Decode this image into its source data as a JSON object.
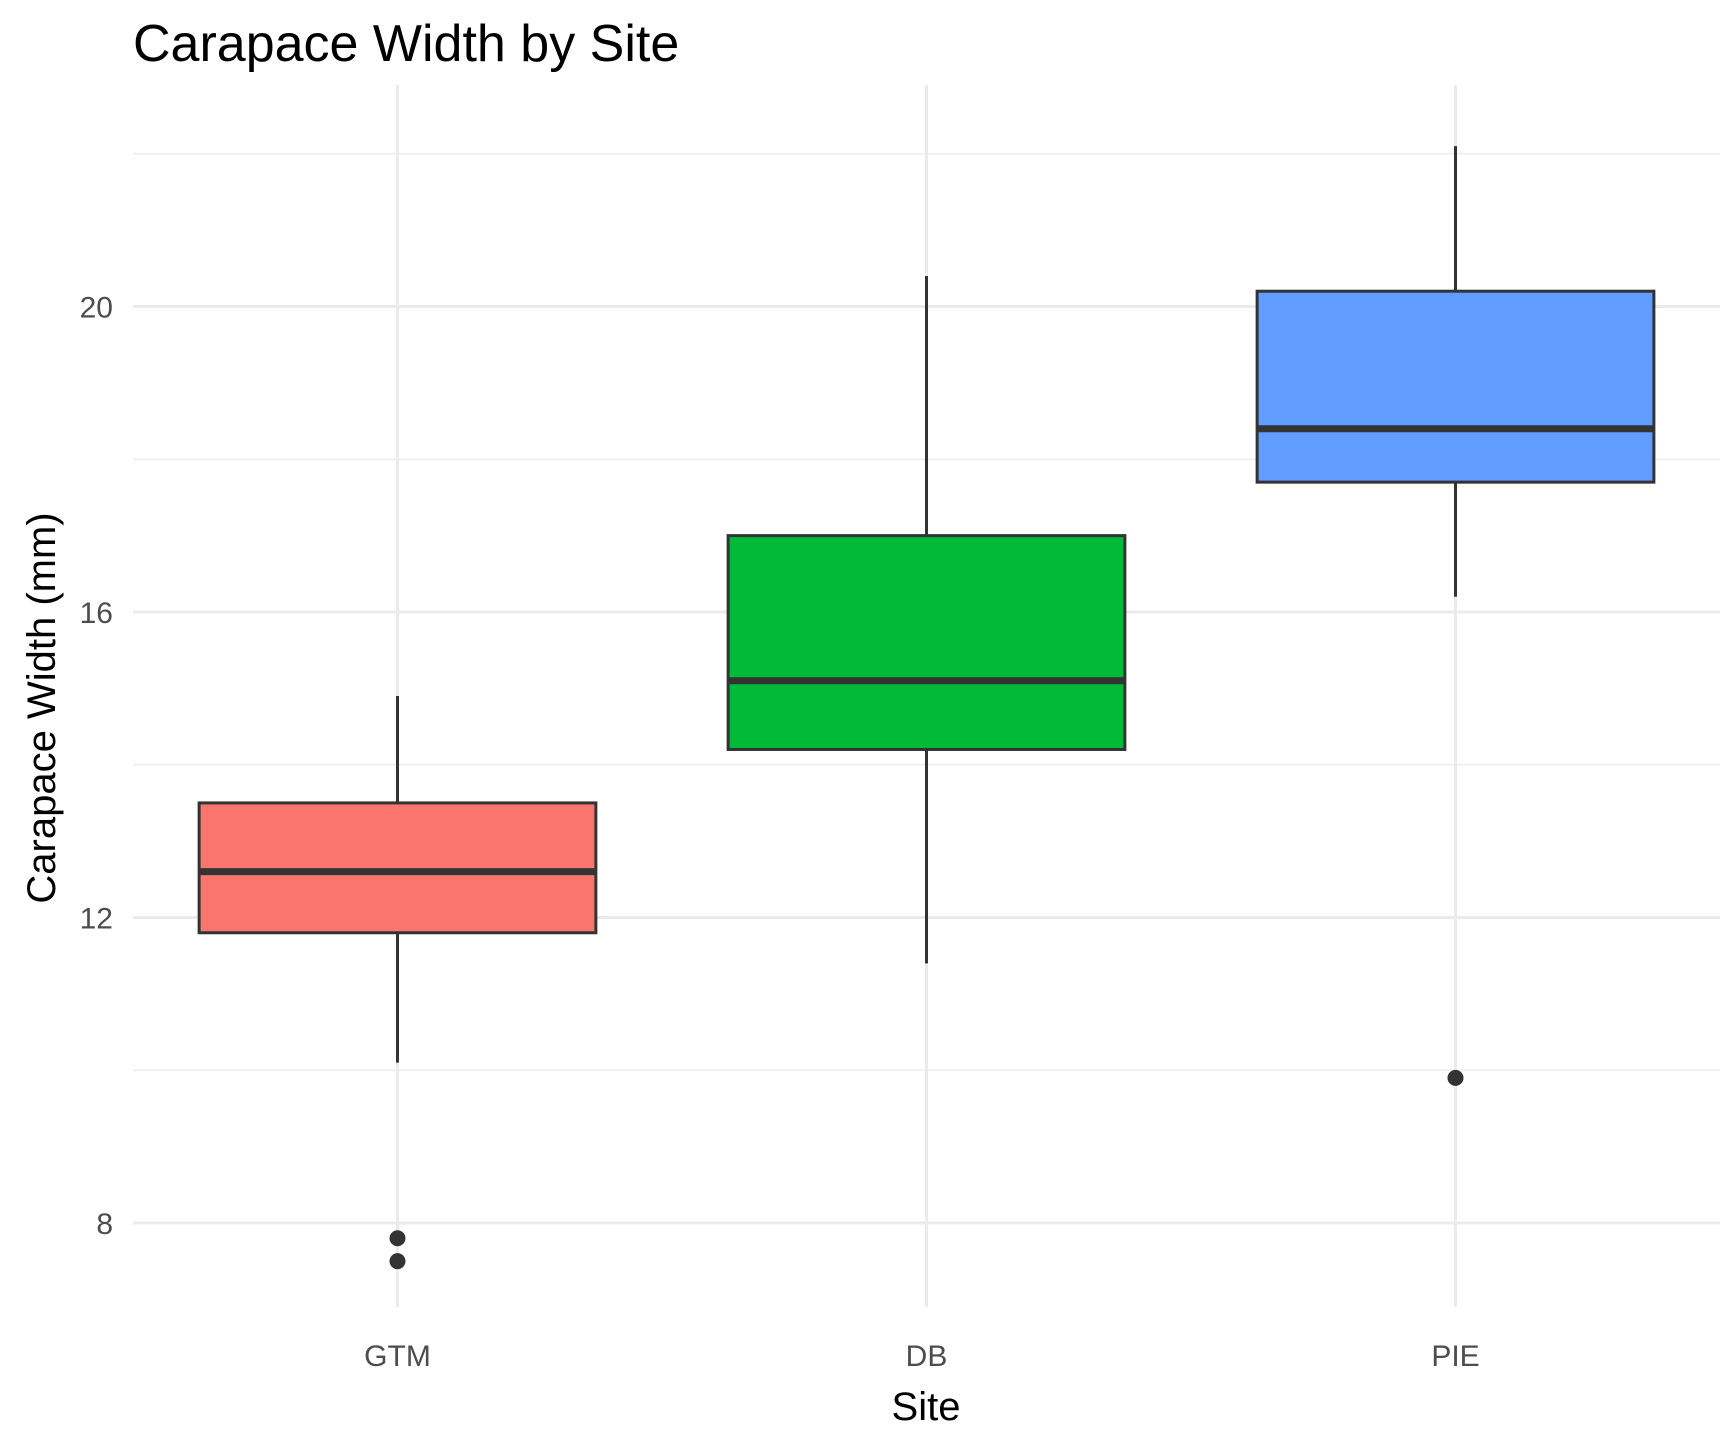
{
  "chart_data": {
    "type": "box",
    "title": "Carapace Width by Site",
    "xlabel": "Site",
    "ylabel": "Carapace Width (mm)",
    "ylim": [
      6.9,
      22.9
    ],
    "y_ticks": [
      8,
      12,
      16,
      20
    ],
    "y_tick_labels": [
      "8",
      "12",
      "16",
      "20"
    ],
    "grid": true,
    "categories": [
      "GTM",
      "DB",
      "PIE"
    ],
    "series": [
      {
        "category": "GTM",
        "color": "#F8766D",
        "whisker_low": 10.1,
        "q1": 11.8,
        "median": 12.6,
        "q3": 13.5,
        "whisker_high": 14.9,
        "outliers": [
          7.8,
          7.5
        ]
      },
      {
        "category": "DB",
        "color": "#00BA38",
        "whisker_low": 11.4,
        "q1": 14.2,
        "median": 15.1,
        "q3": 17.0,
        "whisker_high": 20.4,
        "outliers": []
      },
      {
        "category": "PIE",
        "color": "#619CFF",
        "whisker_low": 16.2,
        "q1": 17.7,
        "median": 18.4,
        "q3": 20.2,
        "whisker_high": 22.1,
        "outliers": [
          9.9
        ]
      }
    ]
  }
}
